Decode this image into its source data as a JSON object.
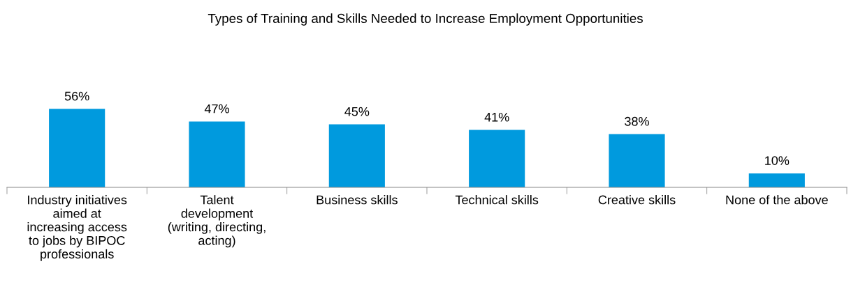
{
  "chart_data": {
    "type": "bar",
    "title": "Types of Training and Skills Needed to Increase Employment Opportunities",
    "categories": [
      "Industry initiatives\naimed at\nincreasing access\nto jobs by BIPOC\nprofessionals",
      "Talent\ndevelopment\n(writing, directing,\nacting)",
      "Business skills",
      "Technical skills",
      "Creative skills",
      "None of the above"
    ],
    "values": [
      56,
      47,
      45,
      41,
      38,
      10
    ],
    "value_labels": [
      "56%",
      "47%",
      "45%",
      "41%",
      "38%",
      "10%"
    ],
    "color": "#009ade",
    "grid": false,
    "tick_labels": "x"
  }
}
